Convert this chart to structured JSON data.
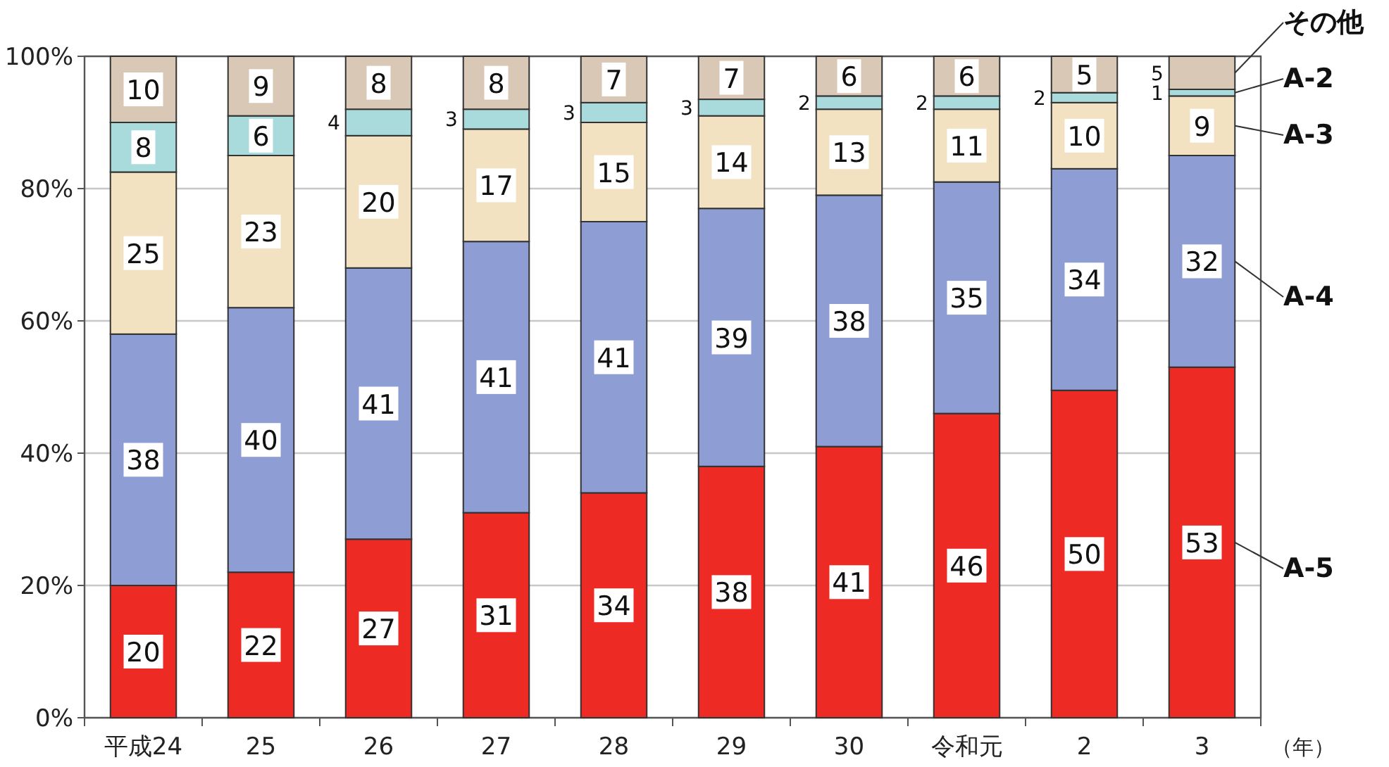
{
  "chart_data": {
    "type": "bar",
    "stacked": true,
    "xlabel": "（年）",
    "categories": [
      "平成24",
      "25",
      "26",
      "27",
      "28",
      "29",
      "30",
      "令和元",
      "2",
      "3"
    ],
    "series": [
      {
        "name": "A-5",
        "color": "#ee2a24",
        "values": [
          20,
          22,
          27,
          31,
          34,
          38,
          41,
          46,
          49.5,
          53
        ],
        "value_labels": [
          "20",
          "22",
          "27",
          "31",
          "34",
          "38",
          "41",
          "46",
          "50",
          "53"
        ]
      },
      {
        "name": "A-4",
        "color": "#8e9dd3",
        "values": [
          38,
          40,
          41,
          41,
          41,
          39,
          38,
          35,
          33.5,
          32
        ],
        "value_labels": [
          "38",
          "40",
          "41",
          "41",
          "41",
          "39",
          "38",
          "35",
          "34",
          "32"
        ]
      },
      {
        "name": "A-3",
        "color": "#f2e2c2",
        "values": [
          24.5,
          23,
          20,
          17,
          15,
          14,
          13,
          11,
          10,
          9
        ],
        "value_labels": [
          "25",
          "23",
          "20",
          "17",
          "15",
          "14",
          "13",
          "11",
          "10",
          "9"
        ]
      },
      {
        "name": "A-2",
        "color": "#a9dbdc",
        "values": [
          7.5,
          6,
          4,
          3,
          3,
          2.5,
          2,
          2,
          1.5,
          1
        ],
        "value_labels": [
          "8",
          "6",
          "4",
          "3",
          "3",
          "3",
          "2",
          "2",
          "2",
          "1"
        ]
      },
      {
        "name": "その他",
        "color": "#d9c8b6",
        "values": [
          10,
          9,
          8,
          8,
          7,
          6.5,
          6,
          6,
          5.5,
          5
        ],
        "value_labels": [
          "10",
          "9",
          "8",
          "8",
          "7",
          "7",
          "6",
          "6",
          "5",
          "5"
        ]
      }
    ],
    "ylim": [
      0,
      100
    ],
    "yticks": [
      {
        "value": 0,
        "label": "0%"
      },
      {
        "value": 20,
        "label": "20%"
      },
      {
        "value": 40,
        "label": "40%"
      },
      {
        "value": 60,
        "label": "60%"
      },
      {
        "value": 80,
        "label": "80%"
      },
      {
        "value": 100,
        "label": "100%"
      }
    ],
    "grid": "y",
    "legend": "right"
  }
}
